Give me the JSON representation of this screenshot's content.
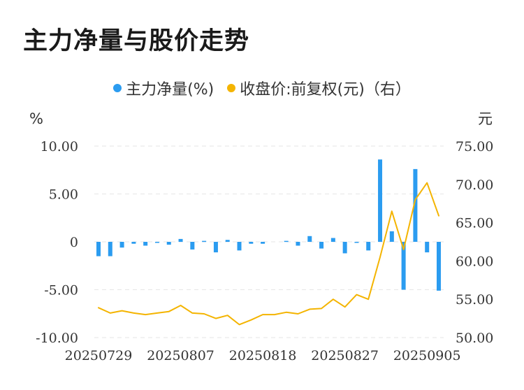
{
  "title": "主力净量与股价走势",
  "legend": {
    "series1": "主力净量(%)",
    "series2": "收盘价:前复权(元)（右）"
  },
  "colors": {
    "bar": "#2b9cf0",
    "line": "#f4b400",
    "grid": "#e6e6e6",
    "text": "#333333"
  },
  "chart_data": {
    "type": "bar+line",
    "left_axis": {
      "unit": "%",
      "ylim": [
        -10,
        10
      ],
      "ticks": [
        "10.00",
        "5.00",
        "0",
        "-5.00",
        "-10.00"
      ],
      "tick_values": [
        10,
        5,
        0,
        -5,
        -10
      ]
    },
    "right_axis": {
      "unit": "元",
      "ylim": [
        50,
        75
      ],
      "ticks": [
        "75.00",
        "70.00",
        "65.00",
        "60.00",
        "55.00",
        "50.00"
      ],
      "tick_values": [
        75,
        70,
        65,
        60,
        55,
        50
      ]
    },
    "x_ticks": [
      "20250729",
      "20250807",
      "20250818",
      "20250827",
      "20250905"
    ],
    "x_tick_index": [
      0,
      7,
      14,
      21,
      28
    ],
    "grid": true,
    "series": [
      {
        "name": "主力净量(%)",
        "type": "bar",
        "axis": "left",
        "values": [
          -1.5,
          -1.5,
          -0.6,
          -0.2,
          -0.4,
          -0.1,
          -0.3,
          0.3,
          -0.8,
          0.1,
          -1.1,
          0.2,
          -0.9,
          -0.2,
          -0.2,
          0.0,
          0.1,
          -0.4,
          0.6,
          -0.7,
          0.4,
          -1.2,
          -0.1,
          -0.9,
          8.6,
          1.1,
          -5.0,
          7.6,
          -1.1,
          -5.1
        ]
      },
      {
        "name": "收盘价:前复权(元)（右）",
        "type": "line",
        "axis": "right",
        "values": [
          53.9,
          53.2,
          53.5,
          53.2,
          53.0,
          53.2,
          53.4,
          54.2,
          53.2,
          53.1,
          52.5,
          52.9,
          51.7,
          52.3,
          53.0,
          53.0,
          53.3,
          53.1,
          53.7,
          53.8,
          55.0,
          54.0,
          55.6,
          55.0,
          60.5,
          66.5,
          61.5,
          68.0,
          70.2,
          65.9
        ]
      }
    ]
  }
}
